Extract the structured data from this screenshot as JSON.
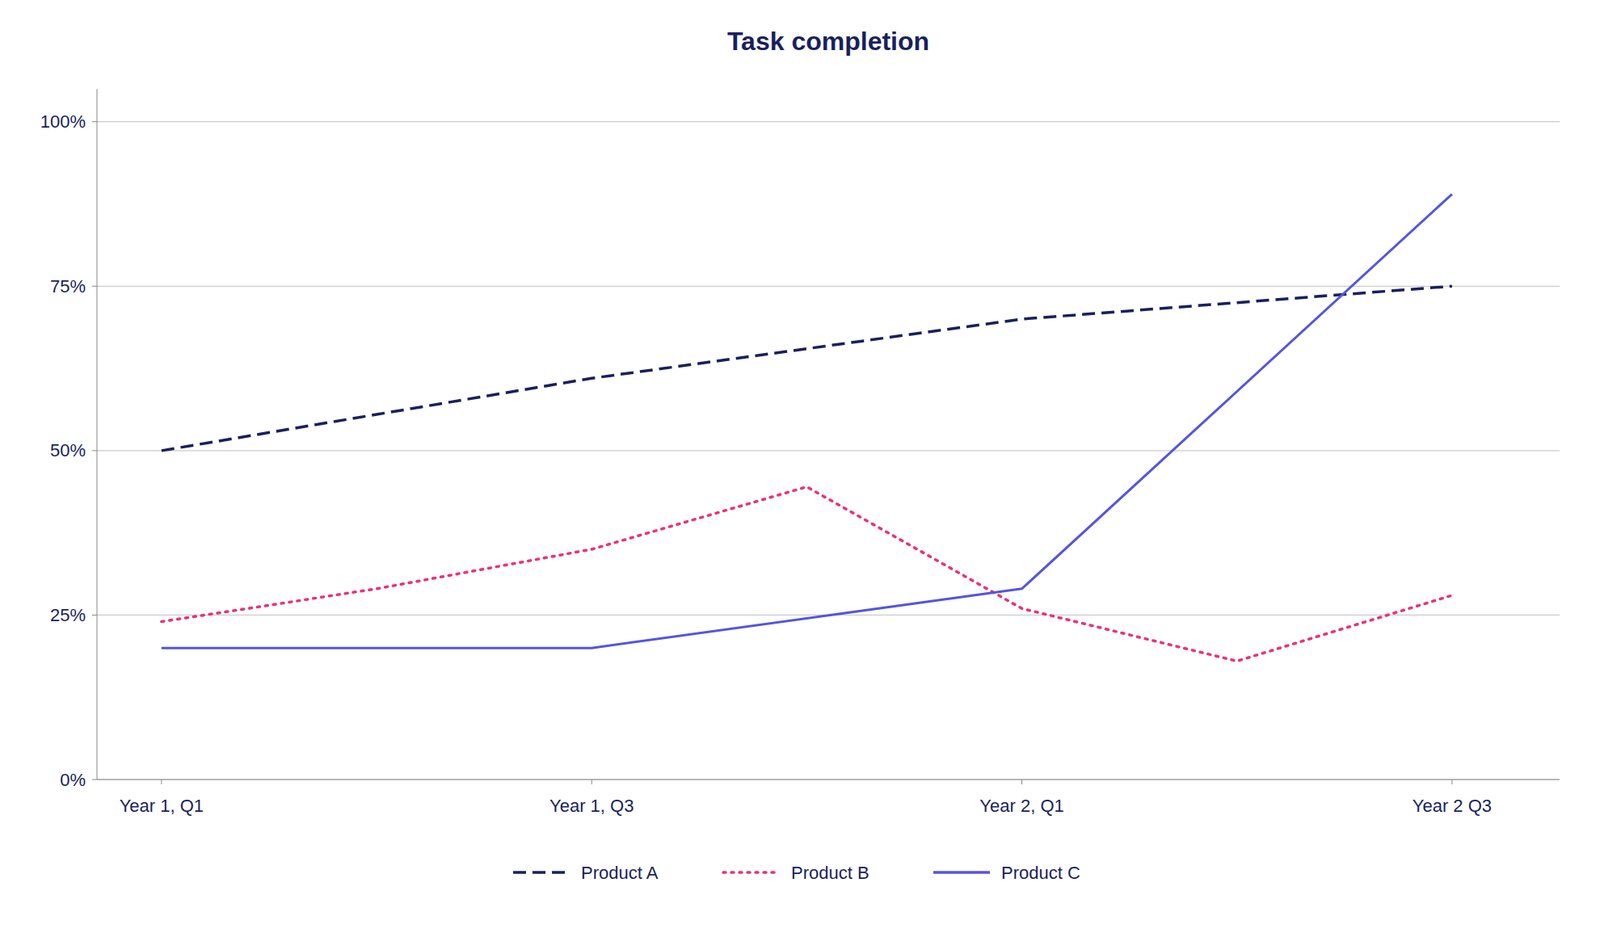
{
  "chart_data": {
    "type": "line",
    "title": "Task completion",
    "series": [
      {
        "name": "Product A",
        "color": "#1a1f5e",
        "line_style": "dashed",
        "x": [
          0,
          1,
          2,
          3,
          4,
          5,
          6
        ],
        "values": [
          0.5,
          0.555,
          0.61,
          0.655,
          0.7,
          0.725,
          0.75
        ]
      },
      {
        "name": "Product B",
        "color": "#e8327c",
        "line_style": "dotted",
        "x": [
          0,
          1,
          2,
          3,
          4,
          5,
          6
        ],
        "values": [
          0.24,
          0.29,
          0.35,
          0.445,
          0.26,
          0.18,
          0.28
        ]
      },
      {
        "name": "Product C",
        "color": "#5555dd",
        "line_style": "solid",
        "x": [
          0,
          2,
          4,
          6
        ],
        "values": [
          0.2,
          0.2,
          0.29,
          0.89
        ]
      }
    ],
    "xlim": [
      -0.3,
      6.5
    ],
    "xticks": [
      {
        "value": 0,
        "label": "Year 1, Q1"
      },
      {
        "value": 2,
        "label": "Year 1, Q3"
      },
      {
        "value": 4,
        "label": "Year 2, Q1"
      },
      {
        "value": 6,
        "label": "Year 2 Q3"
      }
    ],
    "ylim": [
      0.0,
      1.05
    ],
    "yticks": [
      {
        "value": 0.0,
        "label": "0%"
      },
      {
        "value": 0.25,
        "label": "25%"
      },
      {
        "value": 0.5,
        "label": "50%"
      },
      {
        "value": 0.75,
        "label": "75%"
      },
      {
        "value": 1.0,
        "label": "100%"
      }
    ],
    "grid": true,
    "legend": "bottom"
  }
}
